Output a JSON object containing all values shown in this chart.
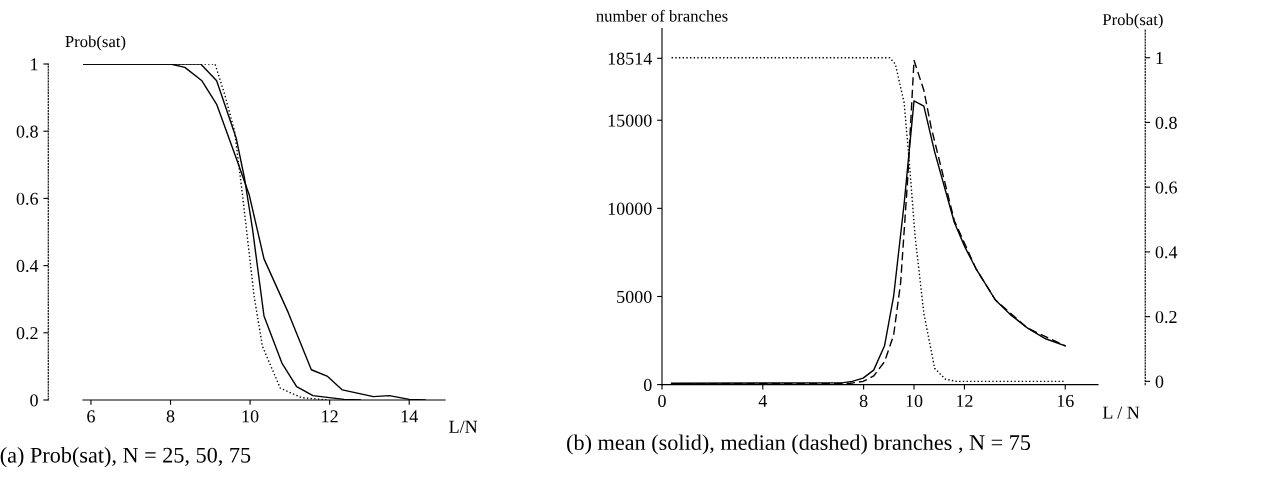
{
  "chart_data": [
    {
      "type": "line",
      "title": "(a) Prob(sat), N = 25, 50, 75",
      "xlabel": "L/N",
      "ylabel": "Prob(sat)",
      "xlim": [
        5.8,
        14.9
      ],
      "ylim": [
        0,
        1
      ],
      "xticks": [
        6,
        8,
        10,
        12,
        14
      ],
      "yticks": [
        0,
        0.2,
        0.4,
        0.6,
        0.8,
        1
      ],
      "series": [
        {
          "color": "#000000",
          "line_style": "solid",
          "x": [
            5.8,
            8.0,
            8.36,
            8.79,
            9.16,
            9.65,
            9.98,
            10.35,
            10.96,
            11.54,
            11.95,
            12.32,
            13.1,
            13.5,
            14.0,
            14.4
          ],
          "values": [
            1,
            1,
            0.99,
            0.95,
            0.88,
            0.72,
            0.61,
            0.42,
            0.26,
            0.09,
            0.07,
            0.03,
            0.01,
            0.013,
            0.002,
            0
          ]
        },
        {
          "color": "#000000",
          "line_style": "solid",
          "x": [
            5.8,
            8.76,
            9.16,
            9.65,
            9.86,
            10.06,
            10.35,
            10.8,
            11.17,
            11.58,
            12.36,
            12.77
          ],
          "values": [
            1,
            1,
            0.95,
            0.78,
            0.66,
            0.51,
            0.25,
            0.11,
            0.04,
            0.013,
            0.002,
            0
          ]
        },
        {
          "color": "#000000",
          "line_style": "dotted",
          "x": [
            5.8,
            9.12,
            9.36,
            9.61,
            9.81,
            10.1,
            10.31,
            10.76,
            11.29,
            11.95
          ],
          "values": [
            1,
            1,
            0.91,
            0.8,
            0.61,
            0.31,
            0.16,
            0.035,
            0.007,
            0
          ]
        }
      ]
    },
    {
      "type": "line",
      "title": "(b) mean (solid), median (dashed) branches , N = 75",
      "xlabel": "L / N",
      "ylabel": "number of branches",
      "y2label": "Prob(sat)",
      "xlim": [
        0,
        17.3
      ],
      "ylim": [
        0,
        20200
      ],
      "xticks": [
        0,
        4,
        8,
        10,
        12,
        16
      ],
      "yticks": [
        0,
        5000,
        10000,
        15000,
        18514
      ],
      "y2lim": [
        -0.01,
        1.09
      ],
      "y2ticks": [
        0,
        0.2,
        0.4,
        0.6,
        0.8,
        1
      ],
      "series": [
        {
          "color": "#000000",
          "line_style": "solid",
          "x": [
            0.38,
            7.13,
            7.55,
            7.98,
            8.4,
            8.83,
            9.19,
            9.61,
            10.0,
            10.39,
            10.82,
            11.6,
            12.02,
            12.45,
            13.23,
            13.8,
            14.51,
            15.22,
            16.0
          ],
          "values": [
            80,
            100,
            180,
            370,
            820,
            2200,
            5000,
            10300,
            16100,
            15800,
            13200,
            9200,
            7800,
            6600,
            4800,
            4000,
            3200,
            2600,
            2200
          ]
        },
        {
          "color": "#000000",
          "line_style": "dashed",
          "x": [
            0.38,
            7.41,
            7.98,
            8.4,
            8.83,
            9.19,
            9.47,
            9.75,
            10.0,
            10.39,
            10.68,
            11.6,
            12.45,
            13.23,
            14.51,
            16.0
          ],
          "values": [
            40,
            60,
            180,
            490,
            1300,
            2800,
            5800,
            11700,
            18400,
            16700,
            14600,
            9300,
            6600,
            4800,
            3200,
            2200
          ]
        },
        {
          "color": "#000000",
          "line_style": "dotted",
          "axis": "y2",
          "x": [
            0.38,
            9.04,
            9.26,
            9.61,
            9.82,
            10.04,
            10.39,
            10.82,
            11.24,
            11.67,
            16.0
          ],
          "values": [
            1,
            1,
            0.98,
            0.86,
            0.67,
            0.45,
            0.21,
            0.04,
            0.007,
            0,
            0
          ]
        }
      ]
    }
  ]
}
